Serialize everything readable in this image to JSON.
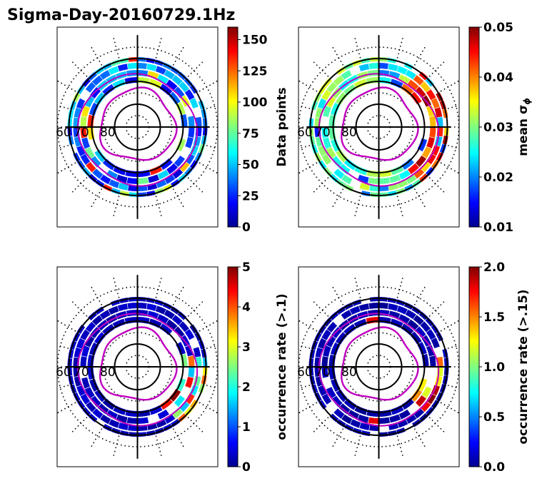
{
  "title": "Sigma-Day-20160729.1Hz",
  "chart_data": [
    {
      "type": "heatmap",
      "projection": "polar",
      "ring_labels": [
        "60",
        "70",
        "80"
      ],
      "colormap": "jet",
      "colorbar": {
        "label": "Data points",
        "range": [
          0,
          160
        ],
        "ticks": [
          "0",
          "25",
          "50",
          "75",
          "100",
          "125",
          "150"
        ]
      },
      "features": {
        "contours": "magenta",
        "grid": "dotted"
      }
    },
    {
      "type": "heatmap",
      "projection": "polar",
      "ring_labels": [
        "60",
        "70",
        "80"
      ],
      "colormap": "jet",
      "colorbar": {
        "label": "mean σ",
        "label_subscript": "ϕ",
        "range": [
          0.01,
          0.05
        ],
        "ticks": [
          "0.01",
          "0.02",
          "0.03",
          "0.04",
          "0.05"
        ]
      },
      "features": {
        "contours": "magenta",
        "grid": "dotted"
      }
    },
    {
      "type": "heatmap",
      "projection": "polar",
      "ring_labels": [
        "60",
        "70",
        "80"
      ],
      "colormap": "jet",
      "colorbar": {
        "label": "occurrence rate (>.1)",
        "range": [
          0,
          5
        ],
        "ticks": [
          "0",
          "1",
          "2",
          "3",
          "4",
          "5"
        ]
      },
      "features": {
        "contours": "magenta",
        "grid": "dotted"
      }
    },
    {
      "type": "heatmap",
      "projection": "polar",
      "ring_labels": [
        "60",
        "70",
        "80"
      ],
      "colormap": "jet",
      "colorbar": {
        "label": "occurrence rate (>.15)",
        "range": [
          0,
          2
        ],
        "ticks": [
          "0.0",
          "0.5",
          "1.0",
          "1.5",
          "2.0"
        ]
      },
      "features": {
        "contours": "magenta",
        "grid": "dotted"
      }
    }
  ]
}
